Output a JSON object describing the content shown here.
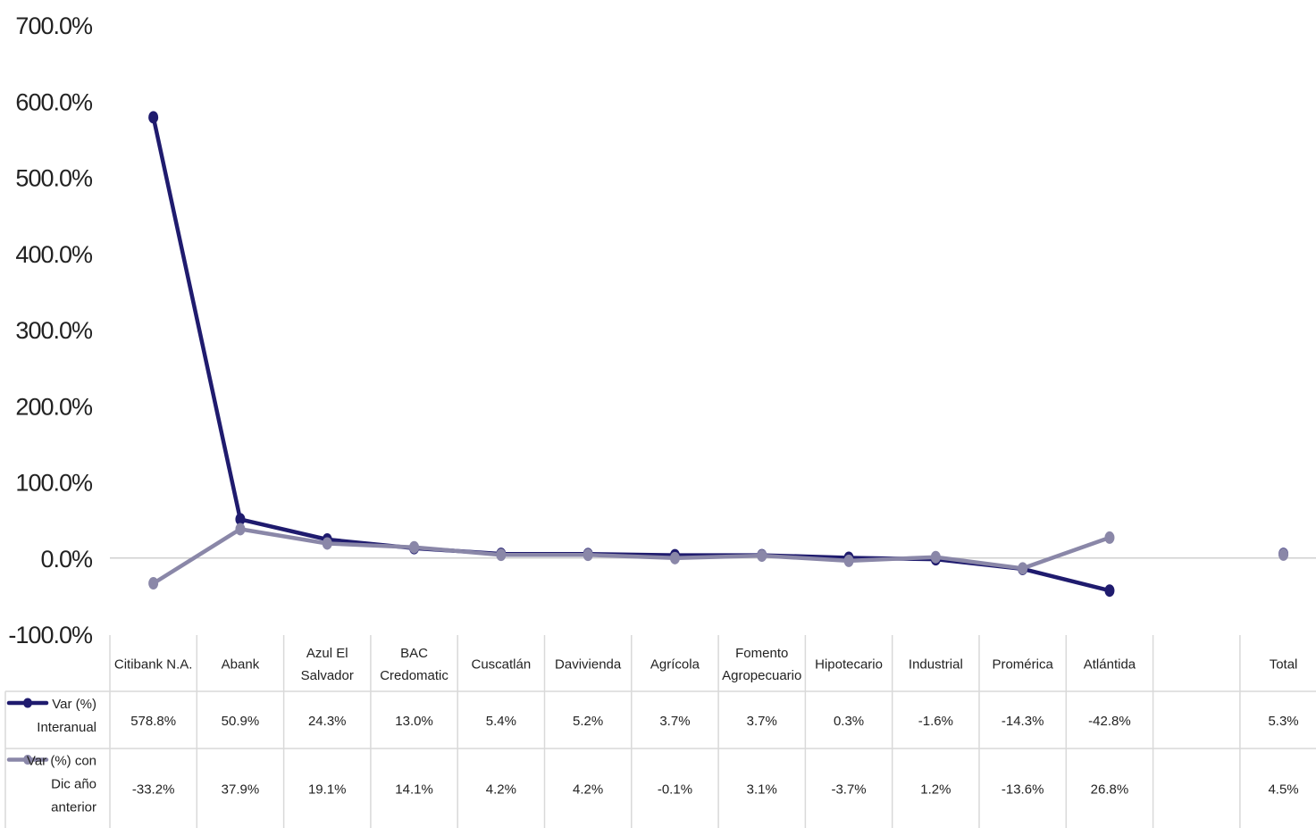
{
  "chart_data": {
    "type": "line",
    "categories": [
      "Citibank N.A.",
      "Abank",
      "Azul El Salvador",
      "BAC Credomatic",
      "Cuscatlán",
      "Davivienda",
      "Agrícola",
      "Fomento Agropecuario",
      "Hipotecario",
      "Industrial",
      "Promérica",
      "Atlántida",
      "",
      "Total"
    ],
    "category_lines": [
      [
        "Citibank N.A."
      ],
      [
        "Abank"
      ],
      [
        "Azul El",
        "Salvador"
      ],
      [
        "BAC",
        "Credomatic"
      ],
      [
        "Cuscatlán"
      ],
      [
        "Davivienda"
      ],
      [
        "Agrícola"
      ],
      [
        "Fomento",
        "Agropecuario"
      ],
      [
        "Hipotecario"
      ],
      [
        "Industrial"
      ],
      [
        "Promérica"
      ],
      [
        "Atlántida"
      ],
      [
        ""
      ],
      [
        "Total"
      ]
    ],
    "ylim": [
      -100,
      700
    ],
    "yticks": [
      "700.0%",
      "600.0%",
      "500.0%",
      "400.0%",
      "300.0%",
      "200.0%",
      "100.0%",
      "0.0%",
      "-100.0%"
    ],
    "ytick_values": [
      700,
      600,
      500,
      400,
      300,
      200,
      100,
      0,
      -100
    ],
    "series": [
      {
        "name": "Var (%) Interanual",
        "name_lines": [
          "Var (%)",
          "Interanual"
        ],
        "color": "#1f1b6e",
        "values": [
          578.8,
          50.9,
          24.3,
          13.0,
          5.4,
          5.2,
          3.7,
          3.7,
          0.3,
          -1.6,
          -14.3,
          -42.8,
          null,
          5.3
        ],
        "labels": [
          "578.8%",
          "50.9%",
          "24.3%",
          "13.0%",
          "5.4%",
          "5.2%",
          "3.7%",
          "3.7%",
          "0.3%",
          "-1.6%",
          "-14.3%",
          "-42.8%",
          "",
          "5.3%"
        ]
      },
      {
        "name": "Var (%) con Dic año anterior",
        "name_lines": [
          "Var (%) con",
          "Dic año",
          "anterior"
        ],
        "color": "#8a87a8",
        "values": [
          -33.2,
          37.9,
          19.1,
          14.1,
          4.2,
          4.2,
          -0.1,
          3.1,
          -3.7,
          1.2,
          -13.6,
          26.8,
          null,
          4.5
        ],
        "labels": [
          "-33.2%",
          "37.9%",
          "19.1%",
          "14.1%",
          "4.2%",
          "4.2%",
          "-0.1%",
          "3.1%",
          "-3.7%",
          "1.2%",
          "-13.6%",
          "26.8%",
          "",
          "4.5%"
        ]
      }
    ],
    "grid": false,
    "legend": "data-table"
  }
}
